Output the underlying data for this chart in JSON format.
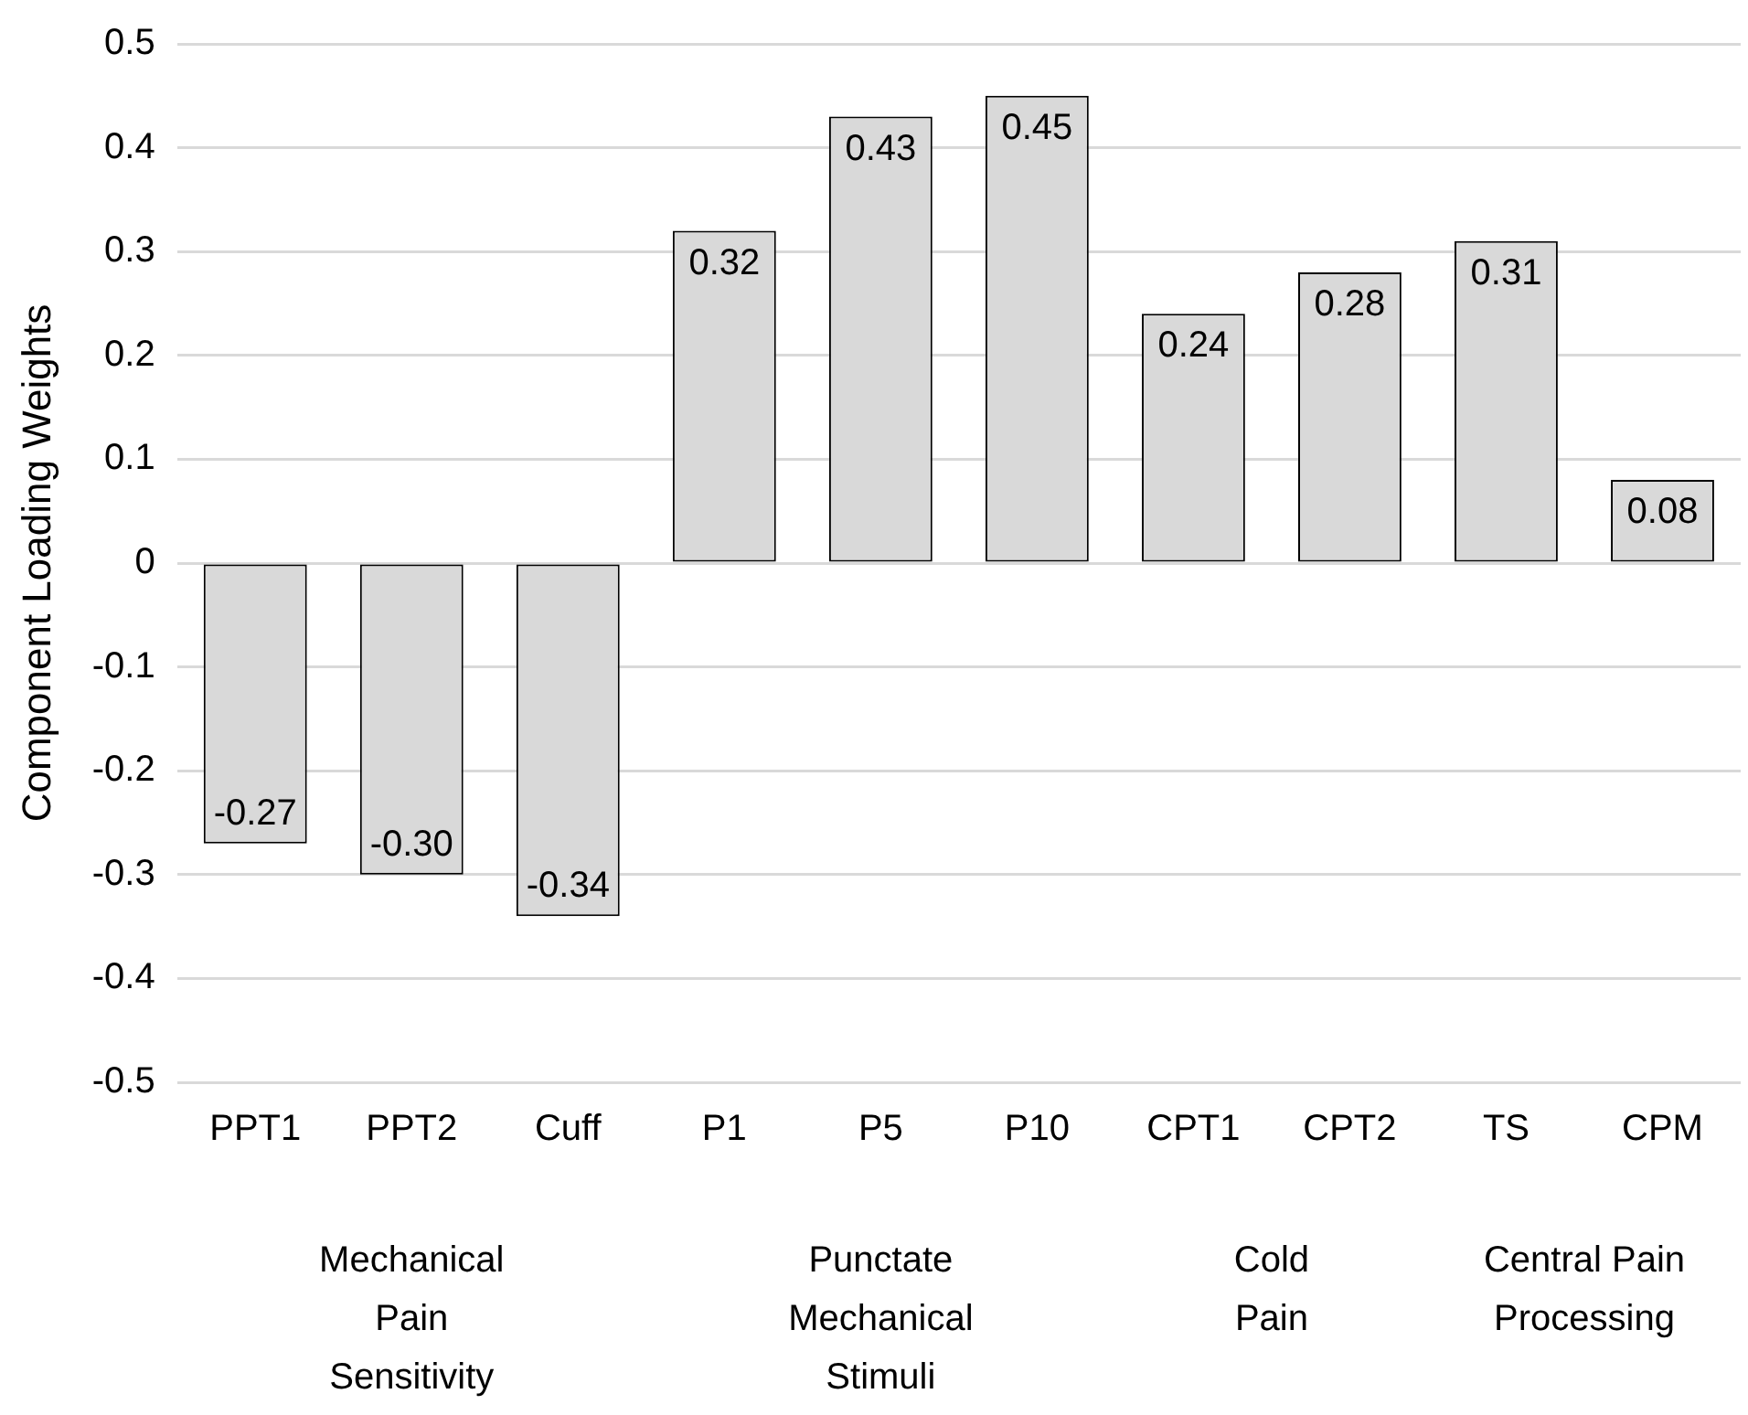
{
  "chart_data": {
    "type": "bar",
    "ylabel": "Component Loading Weights",
    "categories": [
      "PPT1",
      "PPT2",
      "Cuff",
      "P1",
      "P5",
      "P10",
      "CPT1",
      "CPT2",
      "TS",
      "CPM"
    ],
    "values": [
      -0.27,
      -0.3,
      -0.34,
      0.32,
      0.43,
      0.45,
      0.24,
      0.28,
      0.31,
      0.08
    ],
    "value_labels": [
      "-0.27",
      "-0.30",
      "-0.34",
      "0.32",
      "0.43",
      "0.45",
      "0.24",
      "0.28",
      "0.31",
      "0.08"
    ],
    "color": "#d9d9d9",
    "ylim": [
      -0.5,
      0.5
    ],
    "yticks": [
      -0.5,
      -0.4,
      -0.3,
      -0.2,
      -0.1,
      0,
      0.1,
      0.2,
      0.3,
      0.4,
      0.5
    ],
    "grid": "y",
    "annotations": [
      "Mechanical\nPain\nSensitivity",
      "Punctate\nMechanical\nStimuli",
      "Cold\nPain",
      "Central Pain\nProcessing"
    ]
  }
}
